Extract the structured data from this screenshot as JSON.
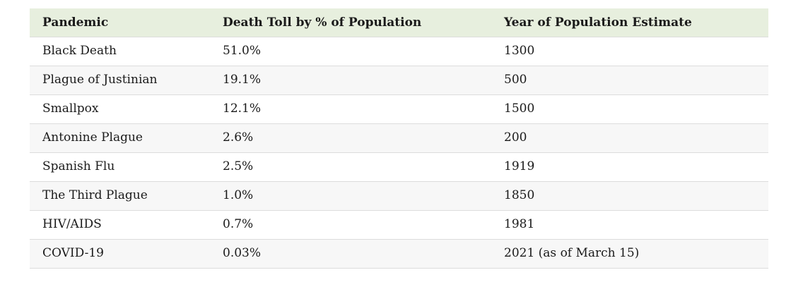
{
  "chart_data": {
    "type": "table",
    "columns": [
      "Pandemic",
      "Death Toll by % of Population",
      "Year of Population Estimate"
    ],
    "rows": [
      [
        "Black Death",
        "51.0%",
        "1300"
      ],
      [
        "Plague of Justinian",
        "19.1%",
        "500"
      ],
      [
        "Smallpox",
        "12.1%",
        "1500"
      ],
      [
        "Antonine Plague",
        "2.6%",
        "200"
      ],
      [
        "Spanish Flu",
        "2.5%",
        "1919"
      ],
      [
        "The Third Plague",
        "1.0%",
        "1850"
      ],
      [
        "HIV/AIDS",
        "0.7%",
        "1981"
      ],
      [
        "COVID-19",
        "0.03%",
        "2021 (as of March 15)"
      ]
    ]
  },
  "colors": {
    "header_bg": "#e7efde",
    "row_alt_bg": "#f7f7f7",
    "border": "#dcdcdc",
    "text": "#1a1a1a",
    "page_bg": "#ffffff"
  }
}
